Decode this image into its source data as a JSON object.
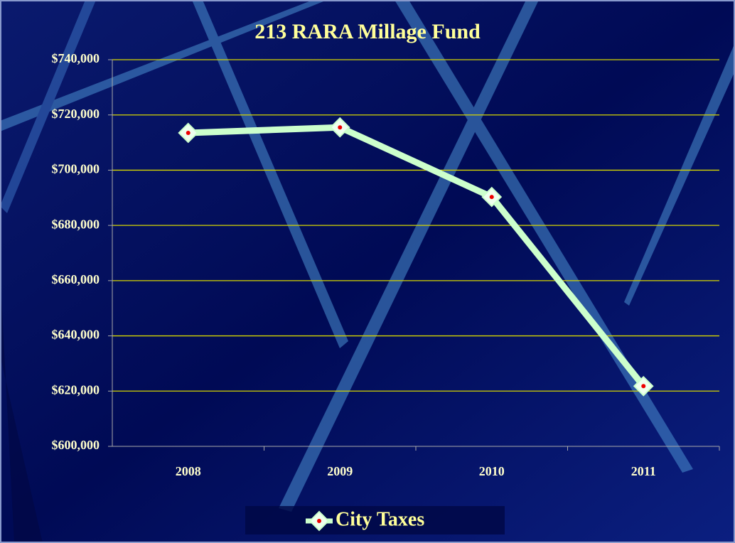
{
  "chart_data": {
    "type": "line",
    "title": "213 RARA Millage Fund",
    "categories": [
      "2008",
      "2009",
      "2010",
      "2011"
    ],
    "series": [
      {
        "name": "City Taxes",
        "color": "#ccffcc",
        "values": [
          713500,
          715500,
          690300,
          621800
        ]
      }
    ],
    "ylim": [
      600000,
      740000
    ],
    "yticks": [
      {
        "value": 600000,
        "label": "$600,000"
      },
      {
        "value": 620000,
        "label": "$620,000"
      },
      {
        "value": 640000,
        "label": "$640,000"
      },
      {
        "value": 660000,
        "label": "$660,000"
      },
      {
        "value": 680000,
        "label": "$680,000"
      },
      {
        "value": 700000,
        "label": "$700,000"
      },
      {
        "value": 720000,
        "label": "$720,000"
      },
      {
        "value": 740000,
        "label": "$740,000"
      }
    ],
    "grid": true,
    "grid_color": "#d6d600",
    "legend": "bottom"
  }
}
